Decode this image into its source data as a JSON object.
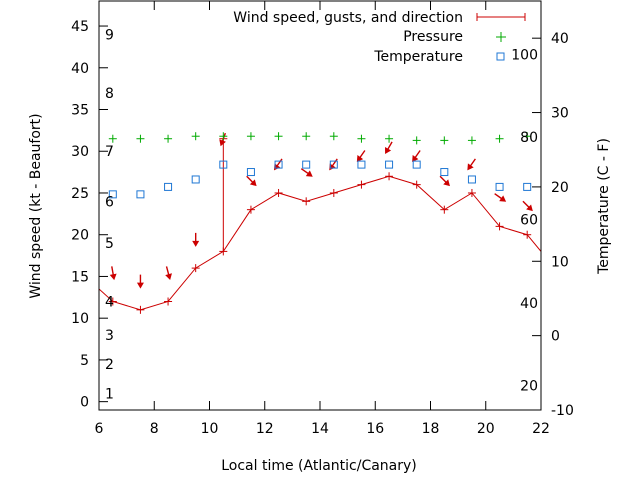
{
  "chart_data": {
    "type": "line",
    "xlabel": "Local time (Atlantic/Canary)",
    "ylabel": "Wind speed (kt - Beaufort)",
    "y2label": "Temperature (C - F)",
    "xlim": [
      6,
      22
    ],
    "x_ticks": [
      6,
      8,
      10,
      12,
      14,
      16,
      18,
      20,
      22
    ],
    "ylim": [
      -1,
      48
    ],
    "y_ticks": [
      0,
      5,
      10,
      15,
      20,
      25,
      30,
      35,
      40,
      45
    ],
    "y2lim": [
      -10,
      45
    ],
    "y2_ticks": [
      -10,
      0,
      10,
      20,
      30,
      40
    ],
    "beaufort_labels": [
      {
        "label": "1",
        "y": 1
      },
      {
        "label": "2",
        "y": 4.5
      },
      {
        "label": "3",
        "y": 8
      },
      {
        "label": "4",
        "y": 12
      },
      {
        "label": "5",
        "y": 19
      },
      {
        "label": "6",
        "y": 24
      },
      {
        "label": "7",
        "y": 30
      },
      {
        "label": "8",
        "y": 37
      },
      {
        "label": "9",
        "y": 44
      }
    ],
    "fahrenheit_labels": [
      {
        "label": "20",
        "c": -6.7
      },
      {
        "label": "40",
        "c": 4.4
      },
      {
        "label": "60",
        "c": 15.6
      },
      {
        "label": "80",
        "c": 26.7
      },
      {
        "label": "100",
        "c": 37.8
      }
    ],
    "legend_position": "top-right",
    "series": [
      {
        "name": "Wind speed, gusts, and direction",
        "color": "#cc0000",
        "x": [
          6,
          6.5,
          7.5,
          8.5,
          9.5,
          10.5,
          11.5,
          12.5,
          13.5,
          14.5,
          15.5,
          16.5,
          17.5,
          18.5,
          19.5,
          20.5,
          21.5,
          22
        ],
        "values": [
          13.5,
          12,
          11,
          12,
          16,
          18,
          23,
          25,
          24,
          25,
          26,
          27,
          26,
          23,
          25,
          21,
          20,
          18
        ],
        "gusts": [
          {
            "x": 10.5,
            "value": 31.5
          }
        ],
        "direction_arrows": [
          {
            "x": 6.5,
            "y": 15.5,
            "angle": 170
          },
          {
            "x": 7.5,
            "y": 14.5,
            "angle": 180
          },
          {
            "x": 8.5,
            "y": 15.5,
            "angle": 165
          },
          {
            "x": 9.5,
            "y": 19.5,
            "angle": 180
          },
          {
            "x": 10.5,
            "y": 31.5,
            "angle": 200
          },
          {
            "x": 11.5,
            "y": 26.5,
            "angle": 135
          },
          {
            "x": 12.5,
            "y": 28.5,
            "angle": 215
          },
          {
            "x": 13.5,
            "y": 27.5,
            "angle": 125
          },
          {
            "x": 14.5,
            "y": 28.5,
            "angle": 215
          },
          {
            "x": 15.5,
            "y": 29.5,
            "angle": 215
          },
          {
            "x": 16.5,
            "y": 30.5,
            "angle": 210
          },
          {
            "x": 17.5,
            "y": 29.5,
            "angle": 215
          },
          {
            "x": 18.5,
            "y": 26.5,
            "angle": 135
          },
          {
            "x": 19.5,
            "y": 28.5,
            "angle": 215
          },
          {
            "x": 20.5,
            "y": 24.5,
            "angle": 125
          },
          {
            "x": 21.5,
            "y": 23.5,
            "angle": 135
          }
        ]
      },
      {
        "name": "Pressure",
        "color": "#00aa00",
        "x": [
          6.5,
          7.5,
          8.5,
          9.5,
          10.5,
          11.5,
          12.5,
          13.5,
          14.5,
          15.5,
          16.5,
          17.5,
          18.5,
          19.5,
          20.5,
          21.5
        ],
        "values": [
          31.5,
          31.5,
          31.5,
          31.8,
          31.8,
          31.8,
          31.8,
          31.8,
          31.8,
          31.5,
          31.5,
          31.3,
          31.3,
          31.3,
          31.5,
          31.8
        ]
      },
      {
        "name": "Temperature",
        "color": "#1f77d4",
        "axis": "y2",
        "x": [
          6.5,
          7.5,
          8.5,
          9.5,
          10.5,
          11.5,
          12.5,
          13.5,
          14.5,
          15.5,
          16.5,
          17.5,
          18.5,
          19.5,
          20.5,
          21.5
        ],
        "values": [
          19,
          19,
          20,
          21,
          23,
          22,
          23,
          23,
          23,
          23,
          23,
          23,
          22,
          21,
          20,
          20
        ]
      }
    ]
  }
}
